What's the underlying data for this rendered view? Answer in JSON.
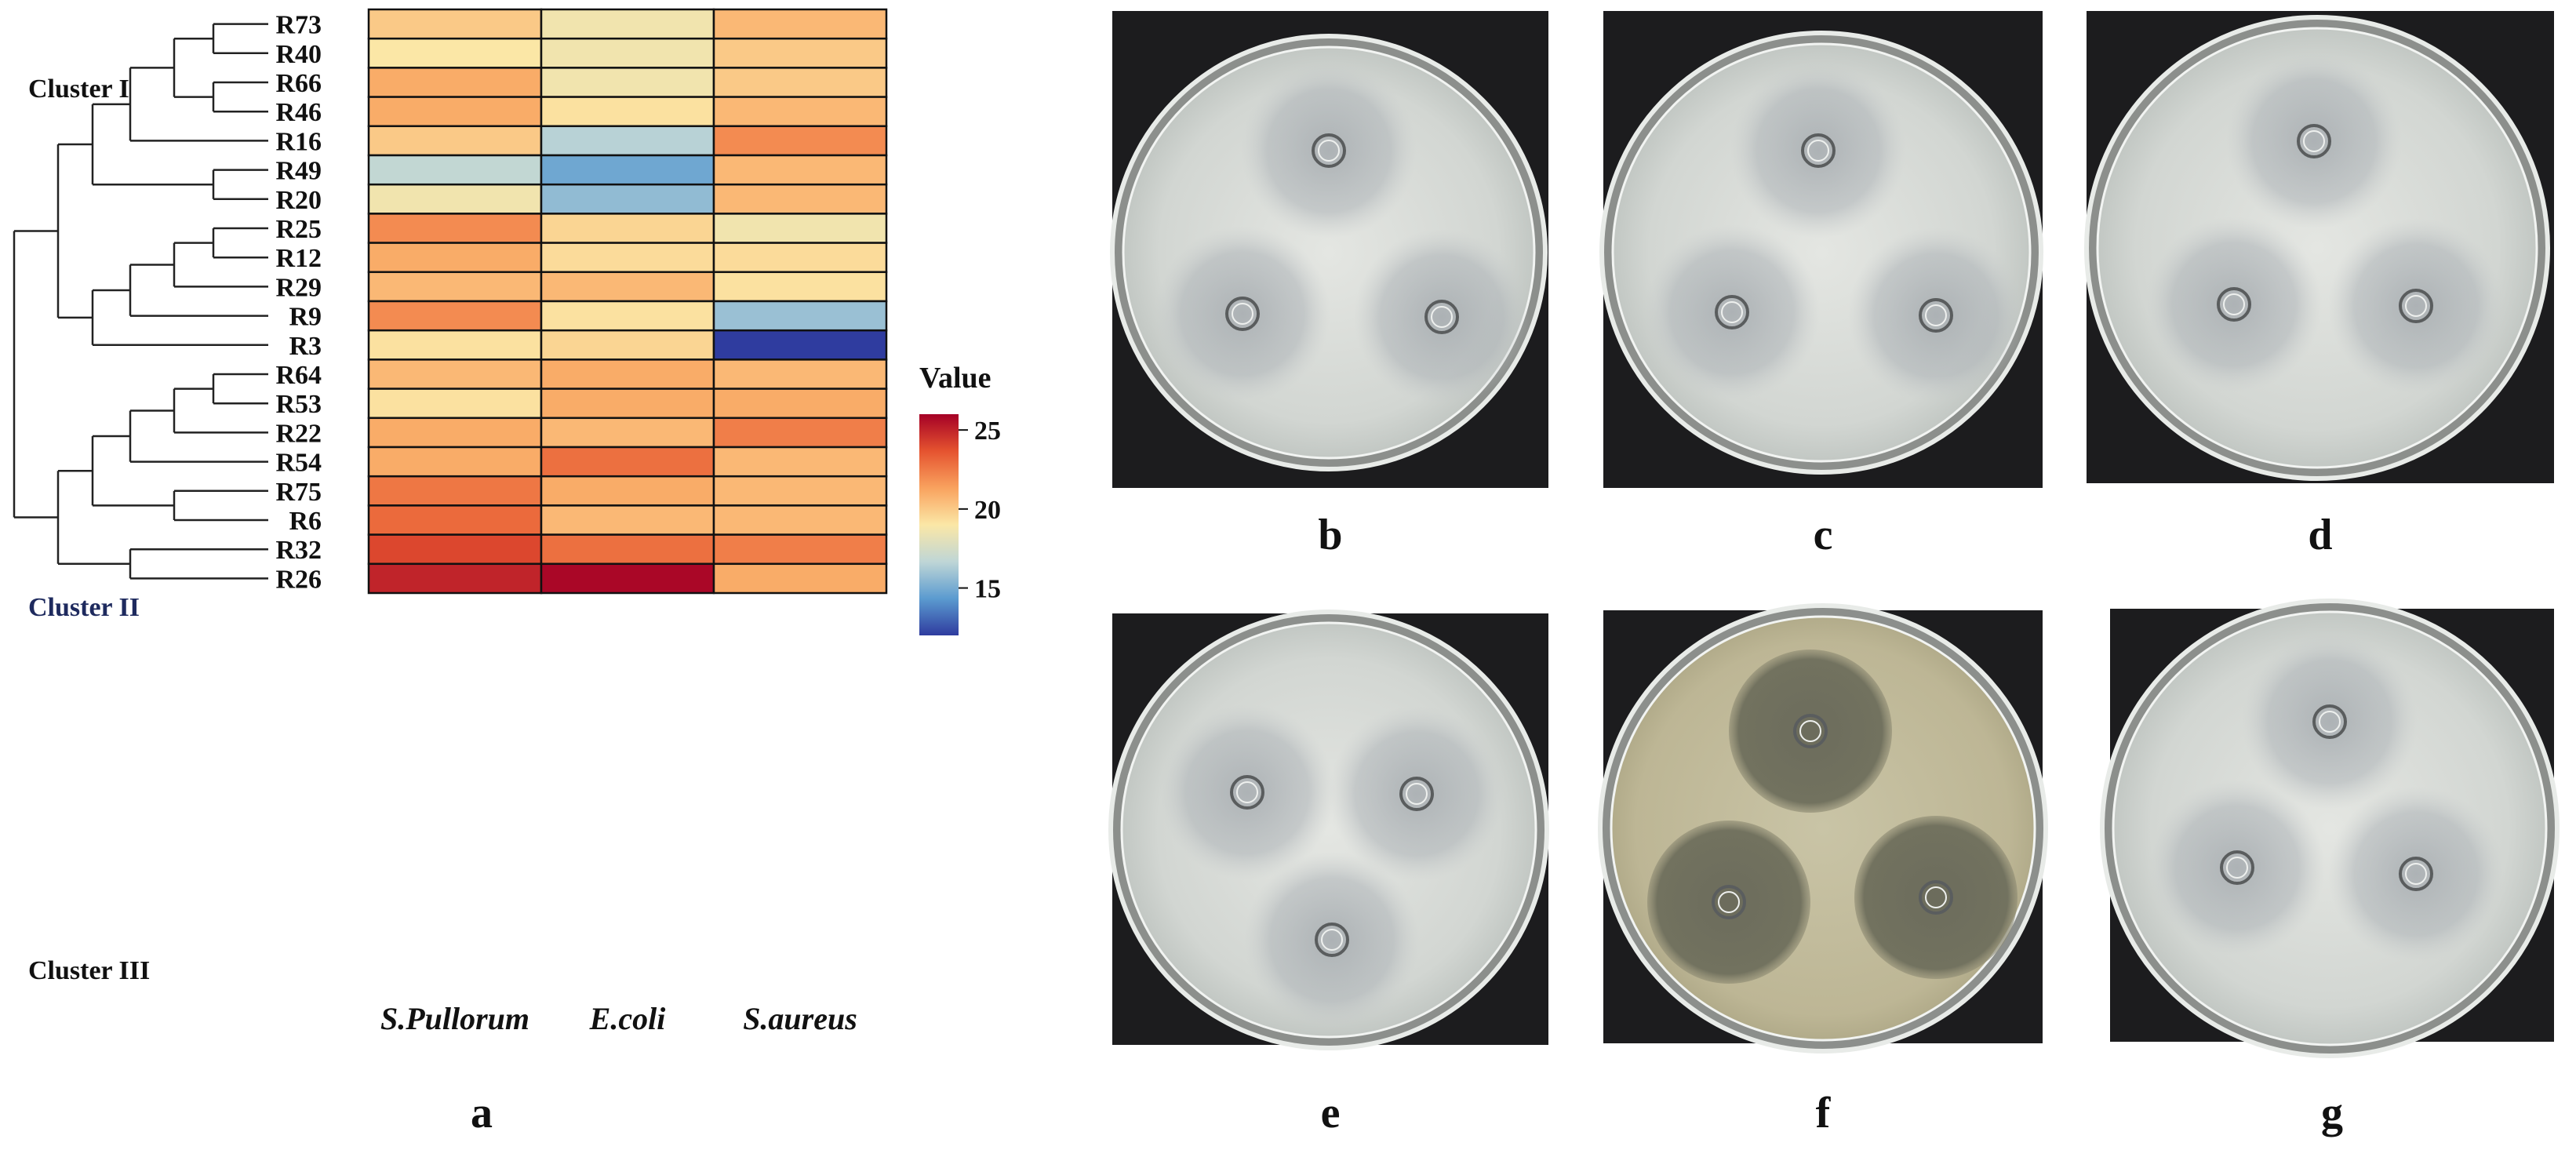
{
  "chart_data": {
    "type": "heatmap",
    "rows": [
      "R73",
      "R40",
      "R66",
      "R46",
      "R16",
      "R49",
      "R20",
      "R25",
      "R12",
      "R29",
      "R9",
      "R3",
      "R64",
      "R53",
      "R22",
      "R54",
      "R75",
      "R6",
      "R32",
      "R26"
    ],
    "columns": [
      "S.Pullorum",
      "E.coli",
      "S.aureus"
    ],
    "values": [
      [
        20.0,
        18.6,
        20.6
      ],
      [
        19.0,
        18.6,
        20.0
      ],
      [
        21.0,
        18.6,
        20.0
      ],
      [
        21.0,
        19.2,
        20.6
      ],
      [
        20.0,
        16.5,
        22.0
      ],
      [
        16.8,
        14.8,
        20.6
      ],
      [
        18.6,
        15.6,
        20.6
      ],
      [
        22.0,
        19.6,
        18.6
      ],
      [
        21.0,
        19.4,
        19.4
      ],
      [
        20.6,
        20.6,
        19.2
      ],
      [
        22.0,
        19.2,
        15.8
      ],
      [
        19.2,
        19.6,
        12.0
      ],
      [
        20.6,
        21.0,
        20.6
      ],
      [
        19.2,
        21.0,
        21.0
      ],
      [
        21.0,
        20.6,
        22.4
      ],
      [
        21.0,
        22.8,
        20.6
      ],
      [
        22.6,
        21.0,
        20.6
      ],
      [
        23.0,
        20.6,
        20.6
      ],
      [
        24.0,
        22.8,
        22.4
      ],
      [
        25.0,
        25.8,
        21.0
      ]
    ],
    "colorbar": {
      "title": "Value",
      "ticks": [
        15,
        20,
        25
      ],
      "range": [
        12,
        26
      ],
      "stops": [
        "#2f3c9f",
        "#5b9bd0",
        "#bfd6d6",
        "#fbe7a6",
        "#f9a25e",
        "#e5532f",
        "#a50026"
      ]
    },
    "dendrogram": {
      "clusters": [
        "Cluster I",
        "Cluster II",
        "Cluster III"
      ],
      "cluster_color_2": "#1e2a5e"
    }
  },
  "panels": [
    {
      "letter": "a"
    },
    {
      "letter": "b"
    },
    {
      "letter": "c"
    },
    {
      "letter": "d"
    },
    {
      "letter": "e"
    },
    {
      "letter": "f"
    },
    {
      "letter": "g"
    }
  ]
}
